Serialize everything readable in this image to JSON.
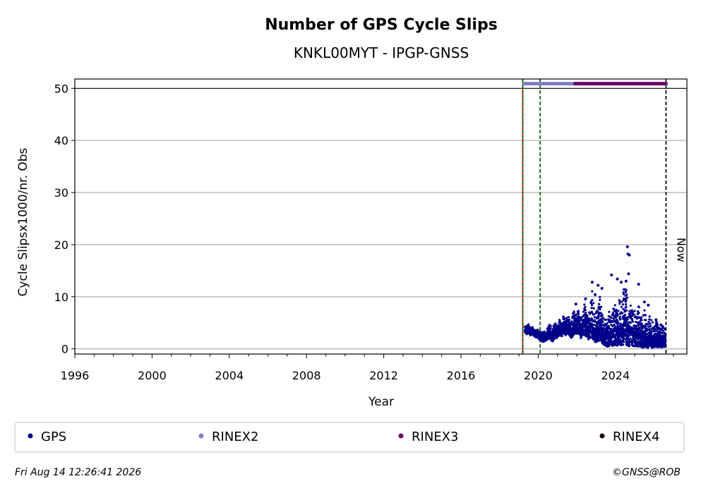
{
  "chart_data": {
    "type": "scatter",
    "title": "Number of GPS Cycle Slips",
    "subtitle": "KNKL00MYT - IPGP-GNSS",
    "xlabel": "Year",
    "ylabel": "Cycle Slipsx1000/nr. Obs",
    "xlim": [
      1996.0,
      2027.7
    ],
    "ylim": [
      -1,
      51.8
    ],
    "x_ticks": [
      1996,
      2000,
      2004,
      2008,
      2012,
      2016,
      2020,
      2024
    ],
    "y_ticks": [
      0,
      10,
      20,
      30,
      40,
      50
    ],
    "x_ticks_labels": [
      "1996",
      "2000",
      "2004",
      "2008",
      "2012",
      "2016",
      "2020",
      "2024"
    ],
    "y_ticks_labels": [
      "0",
      "10",
      "20",
      "30",
      "40",
      "50"
    ],
    "grid": "horizontal",
    "reference_line_y": 50,
    "vertical_lines": [
      {
        "x": 2019.2,
        "style": "solid",
        "color": "#cc0000"
      },
      {
        "x": 2019.2,
        "style": "dashed",
        "color": "#006400"
      },
      {
        "x": 2020.1,
        "style": "dashed",
        "color": "#006400"
      },
      {
        "x": 2026.62,
        "style": "dashed",
        "color": "#000000",
        "label": "Now"
      }
    ],
    "data_range": {
      "start": 2019.2,
      "end": 2026.62
    },
    "coverage_bars": [
      {
        "name": "RINEX2",
        "start": 2019.25,
        "end": 2022.0,
        "y": 50.9
      },
      {
        "name": "RINEX3",
        "start": 2021.9,
        "end": 2026.62,
        "y": 50.9
      }
    ],
    "series": [
      {
        "name": "GPS",
        "color": "#00008b",
        "x": [
          2019.3,
          2019.4,
          2019.5,
          2019.6,
          2019.7,
          2019.8,
          2019.9,
          2020.0,
          2020.1,
          2020.2,
          2020.3,
          2020.4,
          2020.5,
          2020.6,
          2020.7,
          2020.8,
          2020.9,
          2021.0,
          2021.1,
          2021.2,
          2021.3,
          2021.4,
          2021.5,
          2021.6,
          2021.7,
          2021.8,
          2021.9,
          2022.0,
          2022.1,
          2022.2,
          2022.3,
          2022.4,
          2022.5,
          2022.6,
          2022.7,
          2022.8,
          2022.9,
          2023.0,
          2023.1,
          2023.2,
          2023.3,
          2023.4,
          2023.5,
          2023.6,
          2023.7,
          2023.8,
          2023.9,
          2024.0,
          2024.1,
          2024.2,
          2024.3,
          2024.4,
          2024.5,
          2024.6,
          2024.7,
          2024.8,
          2024.9,
          2025.0,
          2025.1,
          2025.2,
          2025.3,
          2025.4,
          2025.5,
          2025.6,
          2025.7,
          2025.8,
          2025.9,
          2026.0,
          2026.1,
          2026.2,
          2026.3,
          2026.4,
          2026.5,
          2026.6
        ],
        "y": [
          3.5,
          3.8,
          4.2,
          3.2,
          3.6,
          3.0,
          2.8,
          3.2,
          2.5,
          2.0,
          2.2,
          2.6,
          2.8,
          3.5,
          2.2,
          2.8,
          3.4,
          3.0,
          4.0,
          3.2,
          4.6,
          3.6,
          4.0,
          4.2,
          3.2,
          3.8,
          4.4,
          4.6,
          5.2,
          3.4,
          4.0,
          5.0,
          4.2,
          3.8,
          4.6,
          4.8,
          3.4,
          3.2,
          4.0,
          5.2,
          3.8,
          3.0,
          2.6,
          2.2,
          3.0,
          2.6,
          3.2,
          3.6,
          2.8,
          4.2,
          3.4,
          4.6,
          5.0,
          4.0,
          3.2,
          3.8,
          3.0,
          2.8,
          2.2,
          3.4,
          2.6,
          2.0,
          3.0,
          2.4,
          1.8,
          2.6,
          2.0,
          1.6,
          2.2,
          1.8,
          1.4,
          1.8,
          2.2,
          2.0
        ],
        "y_upper": [
          4.6,
          4.4,
          4.8,
          4.0,
          4.2,
          3.8,
          3.6,
          3.8,
          3.2,
          3.2,
          3.4,
          3.8,
          4.2,
          5.0,
          3.8,
          4.6,
          5.0,
          4.4,
          5.6,
          5.0,
          6.6,
          5.4,
          6.4,
          6.2,
          5.0,
          8.2,
          7.0,
          7.0,
          7.6,
          6.0,
          6.2,
          8.8,
          6.8,
          6.0,
          9.0,
          12.6,
          7.0,
          7.0,
          8.0,
          10.6,
          7.0,
          6.4,
          6.0,
          5.0,
          7.8,
          6.0,
          8.0,
          8.8,
          7.0,
          10.4,
          8.4,
          10.6,
          12.8,
          10.0,
          7.4,
          9.0,
          7.2,
          7.6,
          5.6,
          8.4,
          7.0,
          5.6,
          8.2,
          6.4,
          4.8,
          7.0,
          5.8,
          4.2,
          6.4,
          5.0,
          4.0,
          4.4,
          5.0,
          3.6
        ],
        "y_lower": [
          3.0,
          2.8,
          3.0,
          2.6,
          2.8,
          2.4,
          2.2,
          2.0,
          1.6,
          1.4,
          1.4,
          1.6,
          1.8,
          2.2,
          1.2,
          1.6,
          2.2,
          2.0,
          2.8,
          2.2,
          3.0,
          2.4,
          2.8,
          2.8,
          2.0,
          2.4,
          2.8,
          2.8,
          3.0,
          2.0,
          2.2,
          2.6,
          2.2,
          1.8,
          2.0,
          2.2,
          1.4,
          1.2,
          1.4,
          1.6,
          1.0,
          0.8,
          0.6,
          0.4,
          0.6,
          0.4,
          0.6,
          0.6,
          0.4,
          0.8,
          0.6,
          0.8,
          1.0,
          0.6,
          0.4,
          0.6,
          0.4,
          0.4,
          0.2,
          0.6,
          0.4,
          0.2,
          0.4,
          0.2,
          0.2,
          0.4,
          0.2,
          0.2,
          0.4,
          0.2,
          0.2,
          0.2,
          0.4,
          0.4
        ],
        "outliers": [
          {
            "x": 2021.95,
            "y": 8.6
          },
          {
            "x": 2022.45,
            "y": 9.6
          },
          {
            "x": 2022.8,
            "y": 12.8
          },
          {
            "x": 2022.95,
            "y": 10.4
          },
          {
            "x": 2023.1,
            "y": 12.2
          },
          {
            "x": 2023.3,
            "y": 11.6
          },
          {
            "x": 2023.8,
            "y": 14.2
          },
          {
            "x": 2024.1,
            "y": 13.4
          },
          {
            "x": 2024.3,
            "y": 12.8
          },
          {
            "x": 2024.45,
            "y": 11.4
          },
          {
            "x": 2024.62,
            "y": 19.6
          },
          {
            "x": 2024.65,
            "y": 18.2
          },
          {
            "x": 2024.72,
            "y": 18.0
          },
          {
            "x": 2024.68,
            "y": 14.4
          },
          {
            "x": 2024.55,
            "y": 13.0
          },
          {
            "x": 2025.2,
            "y": 12.4
          },
          {
            "x": 2025.5,
            "y": 9.0
          },
          {
            "x": 2025.7,
            "y": 8.4
          },
          {
            "x": 2026.1,
            "y": 5.6
          },
          {
            "x": 2026.35,
            "y": 4.6
          }
        ]
      },
      {
        "name": "RINEX2",
        "color": "#8080c0"
      },
      {
        "name": "RINEX3",
        "color": "#6a006a"
      },
      {
        "name": "RINEX4",
        "color": "#1a001a"
      }
    ],
    "legend": {
      "placement": "bottom",
      "entries": [
        "GPS",
        "RINEX2",
        "RINEX3",
        "RINEX4"
      ]
    },
    "now_label": "Now"
  },
  "footer": {
    "timestamp": "Fri Aug 14 12:26:41 2026",
    "credit": "©GNSS@ROB"
  }
}
